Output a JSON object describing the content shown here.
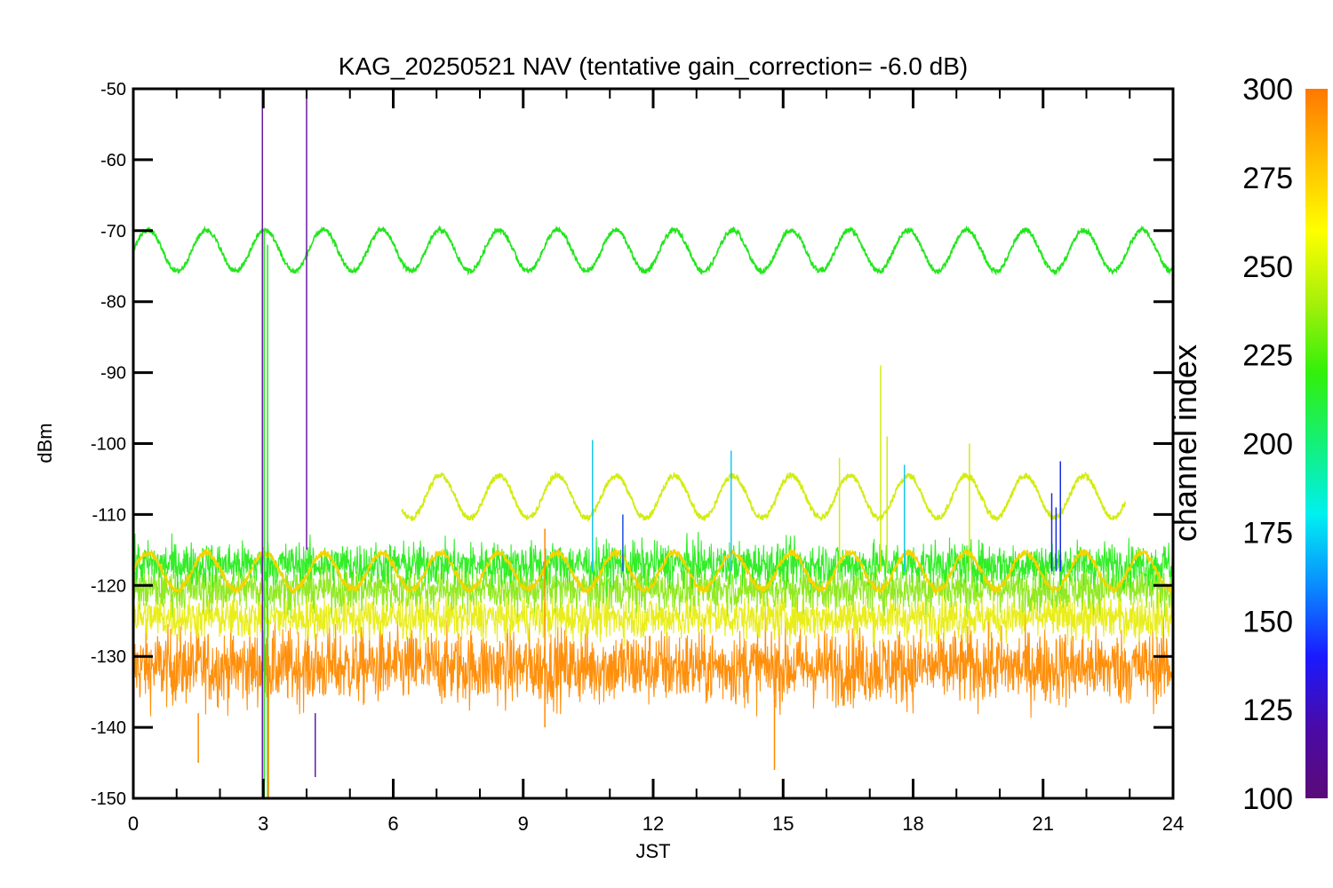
{
  "chart_data": {
    "type": "line",
    "title": "KAG_20250521 NAV (tentative gain_correction= -6.0 dB)",
    "xlabel": "JST",
    "ylabel": "dBm",
    "xlim": [
      0,
      24
    ],
    "ylim": [
      -150,
      -50
    ],
    "x_ticks": [
      "0",
      "3",
      "6",
      "9",
      "12",
      "15",
      "18",
      "21",
      "24"
    ],
    "y_ticks": [
      "-50",
      "-60",
      "-70",
      "-80",
      "-90",
      "-100",
      "-110",
      "-120",
      "-130",
      "-140",
      "-150"
    ],
    "grid": false,
    "series": [
      {
        "color": "#22e61c",
        "shape": "sinusoid",
        "x_range": [
          0,
          24
        ],
        "center": -72.8,
        "amplitude": 2.9,
        "period_hours": 1.35,
        "noise": 0.35
      },
      {
        "color": "#d2ec10",
        "shape": "sinusoid",
        "x_range": [
          6.2,
          22.9
        ],
        "center": -107.5,
        "amplitude": 3.0,
        "period_hours": 1.35,
        "noise": 0.4
      },
      {
        "color": "#f2d400",
        "shape": "sinusoid",
        "x_range": [
          0,
          24
        ],
        "center": -118.0,
        "amplitude": 2.6,
        "period_hours": 1.35,
        "noise": 0.5
      },
      {
        "color": "#28ec1c",
        "shape": "noise_band",
        "x_range": [
          0,
          24
        ],
        "center": -117,
        "spread": 2.2
      },
      {
        "color": "#8ce818",
        "shape": "noise_band",
        "x_range": [
          0,
          24
        ],
        "center": -120.5,
        "spread": 2.2
      },
      {
        "color": "#e8ec10",
        "shape": "noise_band",
        "x_range": [
          0,
          24
        ],
        "center": -124.5,
        "spread": 2.2
      },
      {
        "color": "#ff8a00",
        "shape": "noise_band",
        "x_range": [
          0,
          24
        ],
        "center": -131.5,
        "spread": 3.8
      }
    ],
    "spikes": [
      {
        "x": 2.98,
        "y_from": -150,
        "y_to": -50,
        "color": "#6a1aa0"
      },
      {
        "x": 3.02,
        "y_from": -150,
        "y_to": -70,
        "color": "#22e61c"
      },
      {
        "x": 3.1,
        "y_from": -150,
        "y_to": -72,
        "color": "#22e61c"
      },
      {
        "x": 3.12,
        "y_from": -150,
        "y_to": -130,
        "color": "#ff8a00"
      },
      {
        "x": 4.0,
        "y_from": -115,
        "y_to": -50,
        "color": "#6a1aa0"
      },
      {
        "x": 17.25,
        "y_from": -118,
        "y_to": -89,
        "color": "#d2ec10"
      },
      {
        "x": 17.4,
        "y_from": -118,
        "y_to": -99,
        "color": "#d2ec10"
      },
      {
        "x": 16.3,
        "y_from": -118,
        "y_to": -102,
        "color": "#d2ec10"
      },
      {
        "x": 19.3,
        "y_from": -118,
        "y_to": -100,
        "color": "#d2ec10"
      },
      {
        "x": 10.6,
        "y_from": -118,
        "y_to": -99.5,
        "color": "#18c8e8"
      },
      {
        "x": 13.8,
        "y_from": -118,
        "y_to": -101,
        "color": "#18c8e8"
      },
      {
        "x": 17.8,
        "y_from": -118,
        "y_to": -103,
        "color": "#18c8e8"
      },
      {
        "x": 21.4,
        "y_from": -118,
        "y_to": -102.5,
        "color": "#1a2ee0"
      },
      {
        "x": 21.2,
        "y_from": -118,
        "y_to": -107,
        "color": "#1a2ee0"
      },
      {
        "x": 21.3,
        "y_from": -118,
        "y_to": -109,
        "color": "#1a2ee0"
      },
      {
        "x": 11.3,
        "y_from": -118,
        "y_to": -110,
        "color": "#1a50e0"
      },
      {
        "x": 9.5,
        "y_from": -140,
        "y_to": -112,
        "color": "#ff8a00"
      },
      {
        "x": 14.8,
        "y_from": -146,
        "y_to": -136,
        "color": "#ff8a00"
      },
      {
        "x": 4.2,
        "y_from": -147,
        "y_to": -138,
        "color": "#6a1aa0"
      },
      {
        "x": 1.5,
        "y_from": -145,
        "y_to": -138,
        "color": "#ff8a00"
      }
    ],
    "colorbar": {
      "label": "channel index",
      "range": [
        100,
        300
      ],
      "tick_labels": [
        "300",
        "275",
        "250",
        "225",
        "200",
        "175",
        "150",
        "125",
        "100"
      ],
      "colors": [
        "#5a0a78",
        "#4a0aa8",
        "#1a1aff",
        "#0a8cff",
        "#00f0f0",
        "#14f078",
        "#32f00a",
        "#a8f00a",
        "#ffff00",
        "#ffbe00",
        "#ff7800"
      ]
    }
  }
}
